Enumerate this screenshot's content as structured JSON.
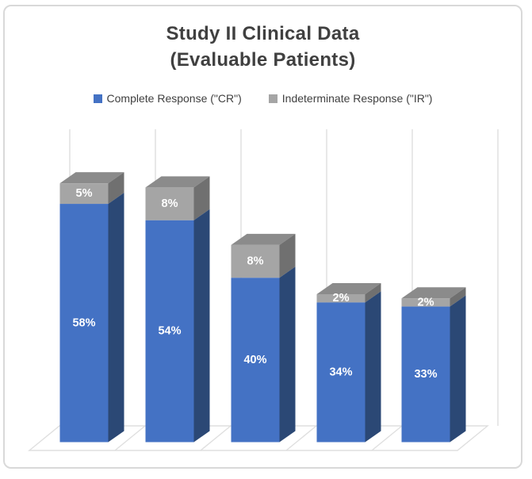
{
  "title": {
    "line1": "Study II Clinical Data",
    "line2": "(Evaluable Patients)"
  },
  "legend": {
    "items": [
      {
        "label": "Complete Response (\"CR\")",
        "color": "#4472C4"
      },
      {
        "label": "Indeterminate Response (\"IR\")",
        "color": "#A5A5A5"
      }
    ]
  },
  "chart_data": {
    "type": "bar",
    "subtype": "3d-stacked-column",
    "title": "Study II Clinical Data (Evaluable Patients)",
    "categories": [
      "",
      "",
      "",
      "",
      ""
    ],
    "series": [
      {
        "name": "Complete Response (\"CR\")",
        "values": [
          58,
          54,
          40,
          34,
          33
        ],
        "unit": "%",
        "color": "#4472C4"
      },
      {
        "name": "Indeterminate Response (\"IR\")",
        "values": [
          5,
          8,
          8,
          2,
          2
        ],
        "unit": "%",
        "color": "#A5A5A5"
      }
    ],
    "stack_totals": [
      63,
      62,
      48,
      36,
      35
    ],
    "data_labels": {
      "visible": true,
      "suffix": "%",
      "color": "#FFFFFF"
    },
    "value_axis_visible": false,
    "category_axis_labels_visible": false,
    "legend_position": "top",
    "gridlines": "vertical-category-separators"
  },
  "colors": {
    "cr_front": "#4472C4",
    "cr_side": "#2B4875",
    "ir_front": "#A5A5A5",
    "ir_side": "#707070",
    "ir_top": "#8B8B8B",
    "grid": "#DFDFDF",
    "card_border": "#D9D9D9",
    "title_text": "#404040",
    "legend_text": "#404040",
    "label_text": "#FFFFFF"
  }
}
